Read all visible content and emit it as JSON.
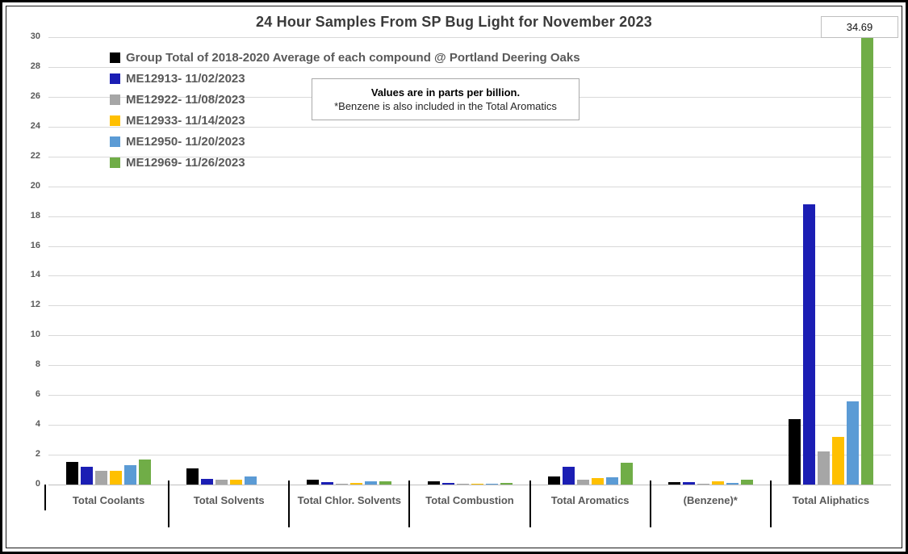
{
  "title": "24 Hour Samples From SP Bug Light for November 2023",
  "annotation": {
    "line1": "Values are in parts per billion.",
    "line2": "*Benzene is also included in the Total Aromatics"
  },
  "callout": {
    "value": "34.69"
  },
  "colors": {
    "avg_black": "#000000",
    "dark_blue": "#1b1eb4",
    "gray": "#a6a6a6",
    "gold": "#ffc000",
    "light_blue": "#5b9bd5",
    "green": "#70ad47",
    "gridline": "#d9d9d9",
    "axis_text": "#595959"
  },
  "chart_data": {
    "type": "bar",
    "title": "24 Hour Samples From SP Bug Light for November 2023",
    "categories": [
      "Total Coolants",
      "Total Solvents",
      "Total Chlor. Solvents",
      "Total Combustion",
      "Total Aromatics",
      "(Benzene)*",
      "Total Aliphatics"
    ],
    "series": [
      {
        "name": "Group Total of 2018-2020 Average of each compound @ Portland Deering Oaks",
        "color": "#000000",
        "values": [
          1.5,
          1.1,
          0.3,
          0.22,
          0.55,
          0.15,
          4.4
        ]
      },
      {
        "name": "ME12913- 11/02/2023",
        "color": "#1b1eb4",
        "values": [
          1.2,
          0.4,
          0.15,
          0.12,
          1.2,
          0.15,
          18.8
        ]
      },
      {
        "name": "ME12922- 11/08/2023",
        "color": "#a6a6a6",
        "values": [
          0.9,
          0.35,
          0.05,
          0.05,
          0.35,
          0.08,
          2.2
        ]
      },
      {
        "name": "ME12933- 11/14/2023",
        "color": "#ffc000",
        "values": [
          0.9,
          0.35,
          0.12,
          0.08,
          0.45,
          0.2,
          3.2
        ]
      },
      {
        "name": "ME12950- 11/20/2023",
        "color": "#5b9bd5",
        "values": [
          1.3,
          0.55,
          0.2,
          0.08,
          0.5,
          0.12,
          5.6
        ]
      },
      {
        "name": "ME12969- 11/26/2023",
        "color": "#70ad47",
        "values": [
          1.7,
          0,
          0.2,
          0.13,
          1.45,
          0.3,
          34.69
        ]
      }
    ],
    "ylim": [
      0,
      30
    ],
    "ytick_step": 2,
    "grid": true,
    "legend_position": "top-left",
    "units_note": "Values are in parts per billion.",
    "benzene_note": "*Benzene is also included in the Total Aromatics",
    "clipped_bar": {
      "series": "ME12969- 11/26/2023",
      "category": "Total Aliphatics",
      "value": 34.69,
      "label": "34.69"
    }
  }
}
